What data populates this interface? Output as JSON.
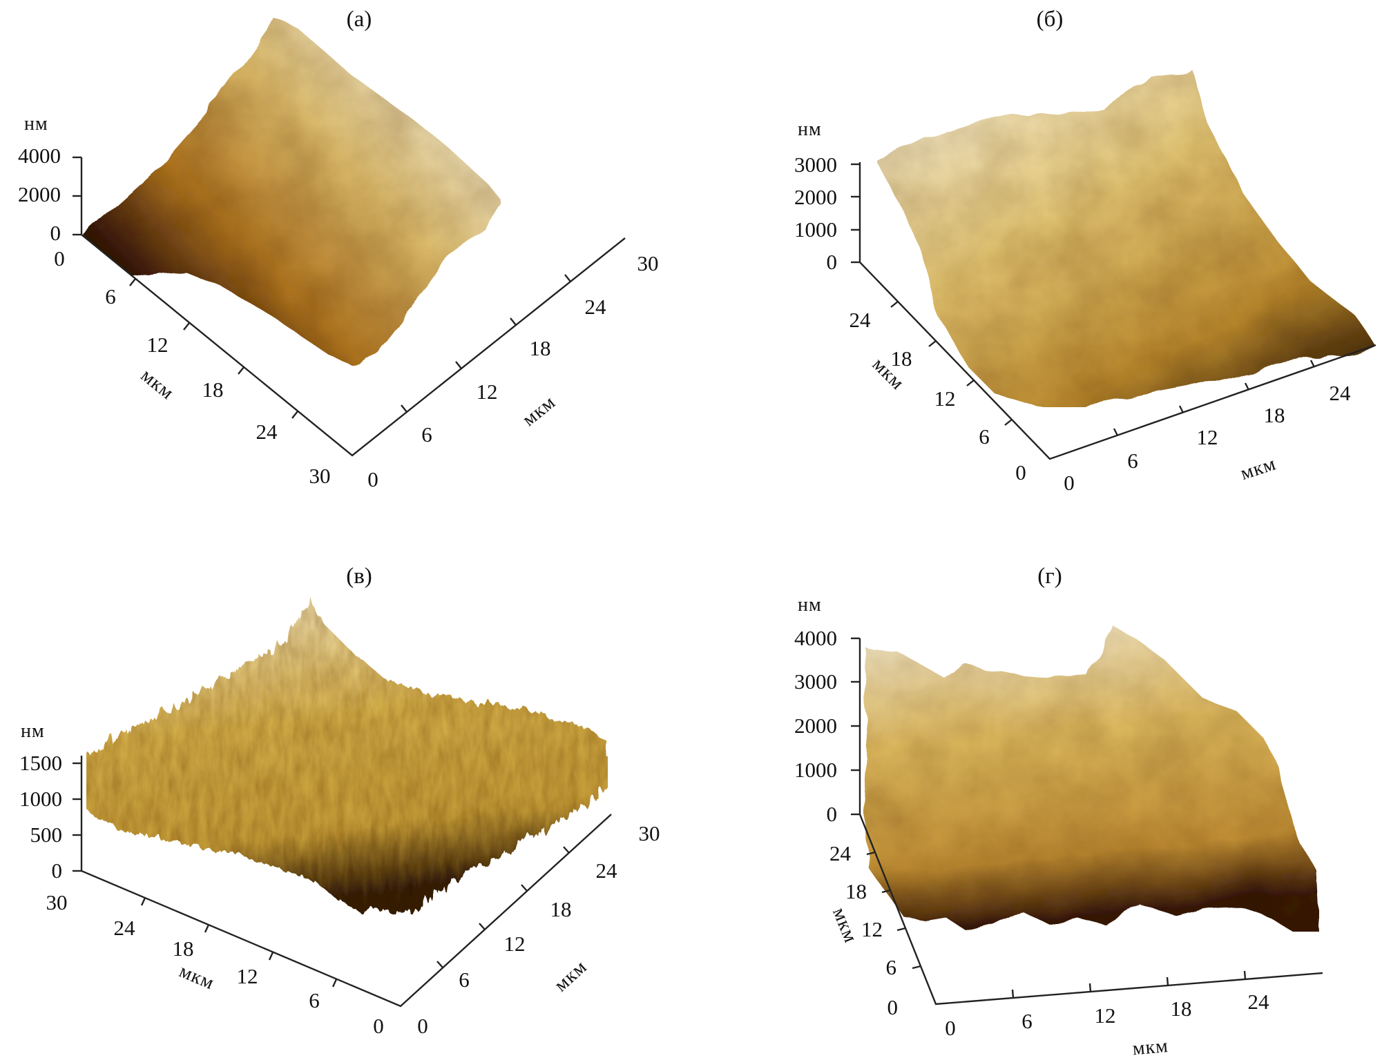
{
  "panels": [
    {
      "label": "(а)",
      "z_unit": "нм",
      "z_ticks": [
        "0",
        "2000",
        "4000"
      ],
      "left_axis": {
        "unit": "мкм",
        "ticks": [
          "0",
          "6",
          "12",
          "18",
          "24",
          "30"
        ]
      },
      "right_axis": {
        "unit": "мкм",
        "ticks": [
          "0",
          "6",
          "12",
          "18",
          "24",
          "30"
        ]
      },
      "colors": {
        "dark": "#1a0c03",
        "mid": "#b57a22",
        "light": "#f6eccb"
      }
    },
    {
      "label": "(б)",
      "z_unit": "нм",
      "z_ticks": [
        "0",
        "1000",
        "2000",
        "3000"
      ],
      "left_axis": {
        "unit": "мкм",
        "ticks": [
          "0",
          "6",
          "12",
          "18",
          "24"
        ]
      },
      "right_axis": {
        "unit": "мкм",
        "ticks": [
          "0",
          "6",
          "12",
          "18",
          "24"
        ]
      },
      "colors": {
        "dark": "#2a1405",
        "mid": "#c08f30",
        "light": "#fbf4dc"
      }
    },
    {
      "label": "(в)",
      "z_unit": "нм",
      "z_ticks": [
        "0",
        "500",
        "1000",
        "1500"
      ],
      "left_axis": {
        "unit": "мкм",
        "ticks": [
          "30",
          "24",
          "18",
          "12",
          "6",
          "0"
        ]
      },
      "right_axis": {
        "unit": "мкм",
        "ticks": [
          "0",
          "6",
          "12",
          "18",
          "24",
          "30"
        ]
      },
      "colors": {
        "dark": "#3a2206",
        "mid": "#caa23a",
        "light": "#fbf1cf"
      }
    },
    {
      "label": "(г)",
      "z_unit": "нм",
      "z_ticks": [
        "0",
        "1000",
        "2000",
        "3000",
        "4000"
      ],
      "left_axis": {
        "unit": "мкм",
        "ticks": [
          "0",
          "6",
          "12",
          "18",
          "24"
        ]
      },
      "right_axis": {
        "unit": "мкм",
        "ticks": [
          "0",
          "6",
          "12",
          "18",
          "24"
        ]
      },
      "colors": {
        "dark": "#3a1a06",
        "mid": "#c49236",
        "light": "#fbf3da"
      }
    }
  ]
}
